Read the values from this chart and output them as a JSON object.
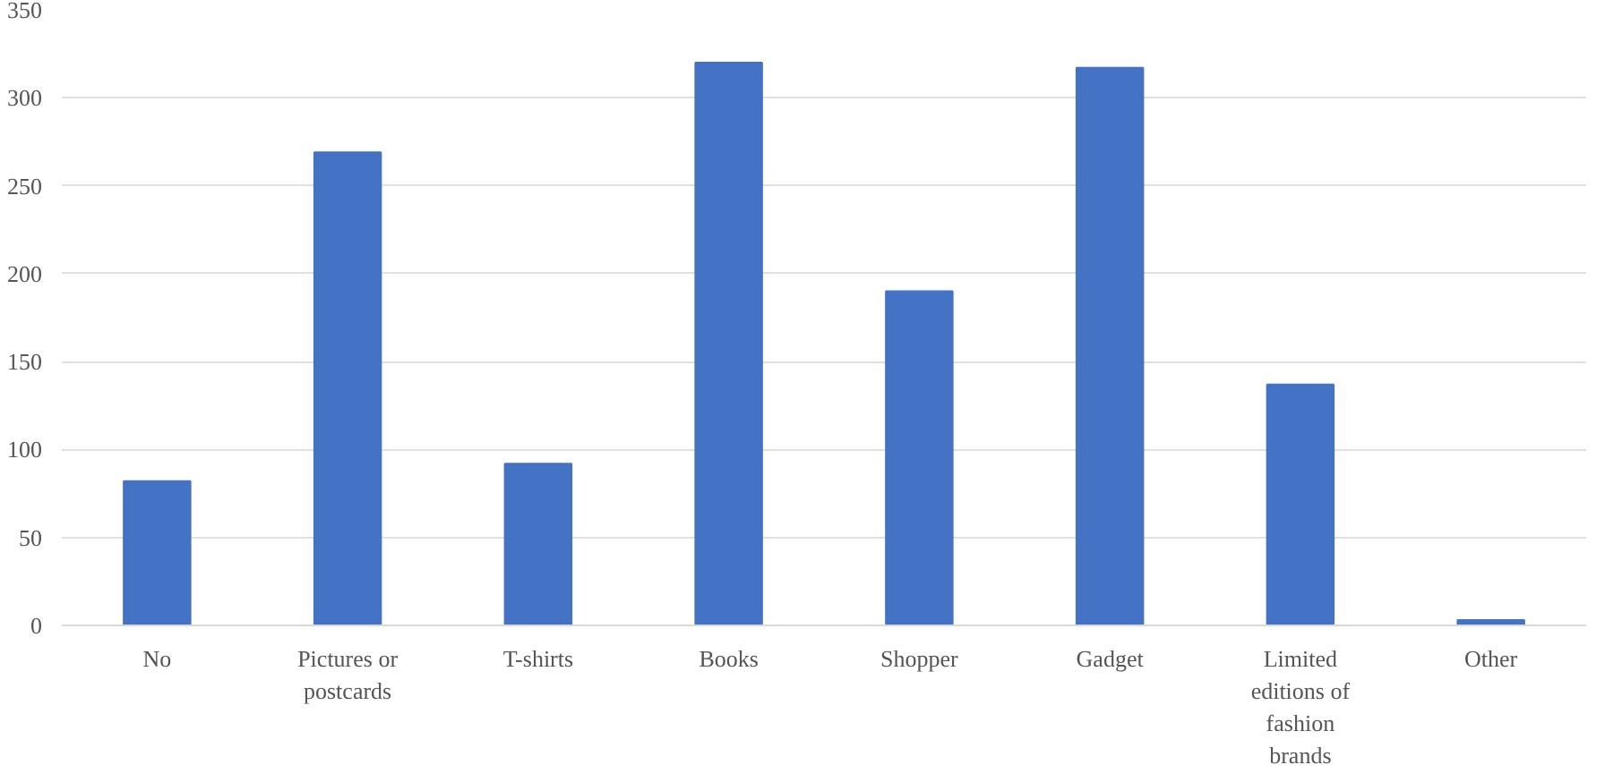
{
  "chart_data": {
    "type": "bar",
    "categories": [
      "No",
      "Pictures or postcards",
      "T-shirts",
      "Books",
      "Shopper",
      "Gadget",
      "Limited editions of fashion brands",
      "Other"
    ],
    "values": [
      82,
      269,
      92,
      320,
      190,
      317,
      137,
      3
    ],
    "color": "#4472c4",
    "ylim": [
      0,
      350
    ],
    "yticks": [
      0,
      50,
      100,
      150,
      200,
      250,
      300,
      350
    ],
    "grid": "y"
  }
}
